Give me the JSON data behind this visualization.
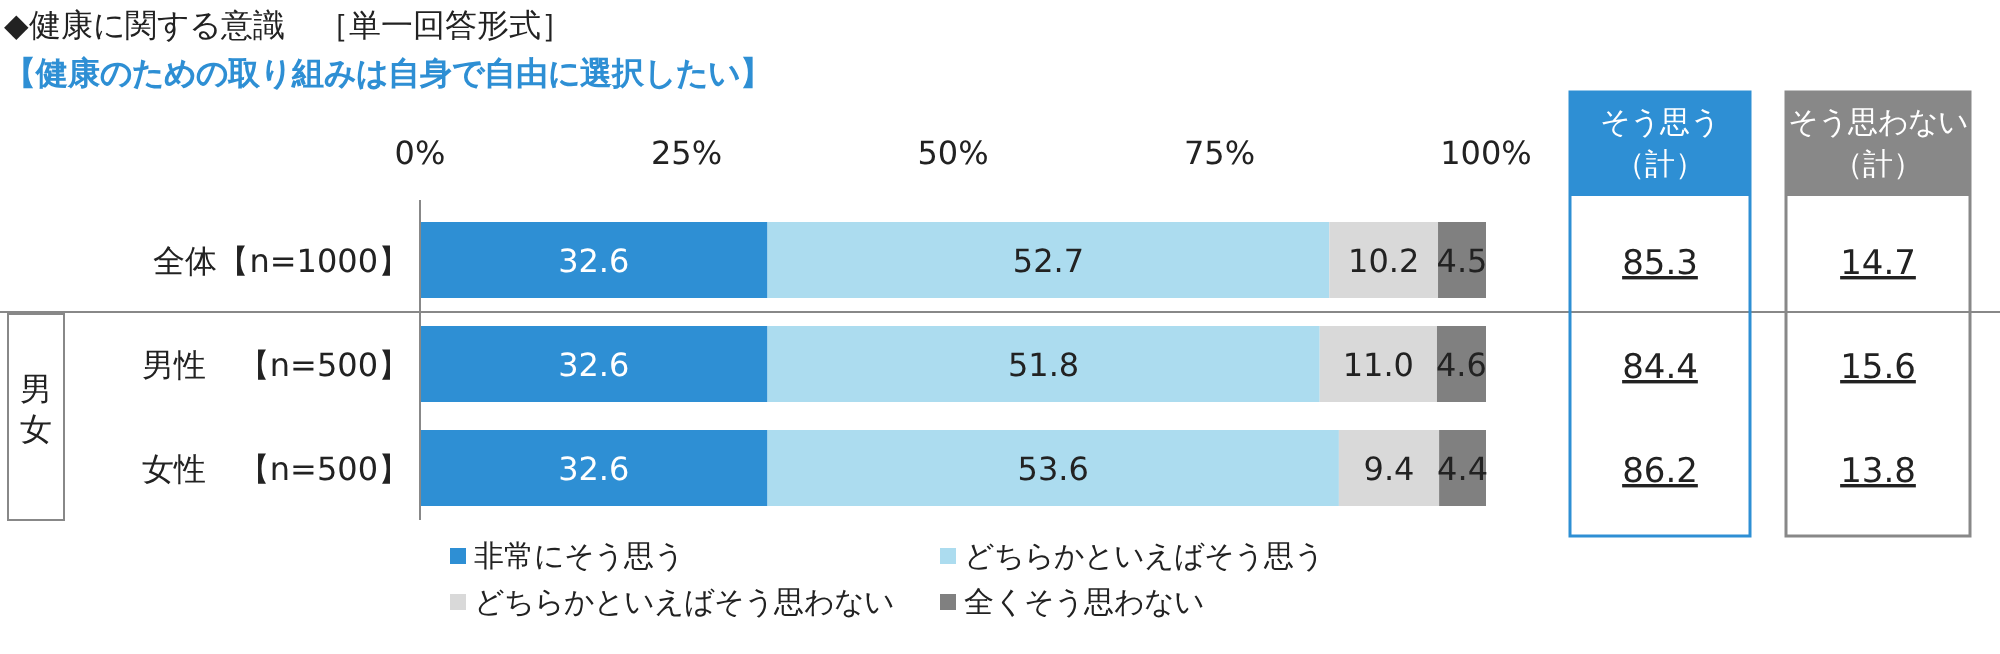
{
  "chart_data": {
    "type": "bar",
    "orientation": "horizontal",
    "stacked": true,
    "title": "◆健康に関する意識　［単一回答形式］",
    "subtitle": "【健康のための取り組みは自身で自由に選択したい】",
    "categories": [
      "全体【n=1000】",
      "男性　【n=500】",
      "女性　【n=500】"
    ],
    "series": [
      {
        "name": "非常にそう思う",
        "color": "#2e8fd4",
        "values": [
          32.6,
          32.6,
          32.6
        ]
      },
      {
        "name": "どちらかといえばそう思う",
        "color": "#acdcef",
        "values": [
          52.7,
          51.8,
          53.6
        ]
      },
      {
        "name": "どちらかといえばそう思わない",
        "color": "#d9d9d9",
        "values": [
          10.2,
          11.0,
          9.4
        ]
      },
      {
        "name": "全くそう思わない",
        "color": "#808080",
        "values": [
          4.5,
          4.6,
          4.4
        ]
      }
    ],
    "value_labels": [
      [
        "32.6",
        "52.7",
        "10.2",
        "4.5"
      ],
      [
        "32.6",
        "51.8",
        "11.0",
        "4.6"
      ],
      [
        "32.6",
        "53.6",
        "9.4",
        "4.4"
      ]
    ],
    "xlim": [
      0,
      100
    ],
    "xticks": [
      {
        "value": 0,
        "label": "0%"
      },
      {
        "value": 25,
        "label": "25%"
      },
      {
        "value": 50,
        "label": "50%"
      },
      {
        "value": 75,
        "label": "75%"
      },
      {
        "value": 100,
        "label": "100%"
      }
    ],
    "legend": "bottom",
    "annotations": [
      "男女",
      "そう思う（計）",
      "そう思わない（計）",
      "85.3",
      "14.7",
      "84.4",
      "15.6",
      "86.2",
      "13.8"
    ]
  }
}
